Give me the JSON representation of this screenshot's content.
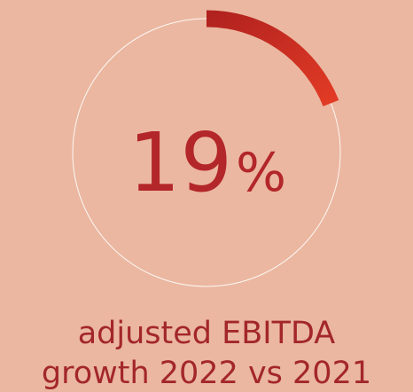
{
  "kpi": {
    "value": 19,
    "unit": "%",
    "caption": [
      "adjusted EBITDA",
      "growth 2022 vs 2021"
    ]
  }
}
